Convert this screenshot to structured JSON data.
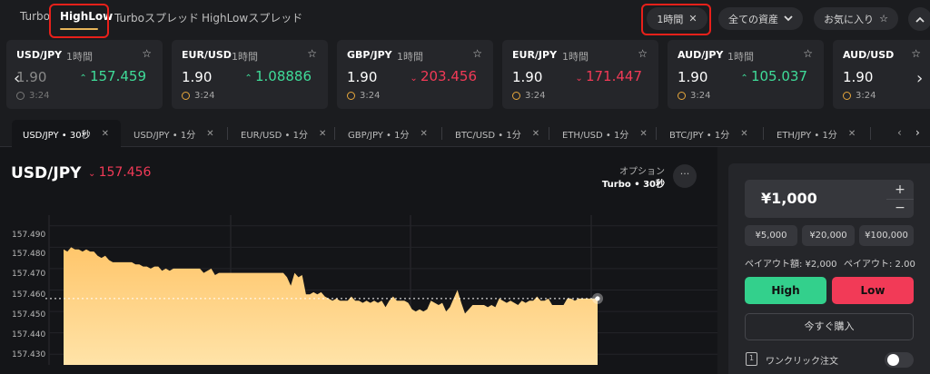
{
  "top_tabs": [
    {
      "label": "Turbo"
    },
    {
      "label": "HighLow"
    },
    {
      "label": "Turboスプレッド"
    },
    {
      "label": "HighLowスプレッド"
    }
  ],
  "filters": {
    "period_label": "1時間",
    "assets_label": "全ての資産",
    "favorites_label": "お気に入り"
  },
  "cards": [
    {
      "pair": "USD/JPY",
      "period": "1時間",
      "payout": "1.90",
      "price": "157.459",
      "direction": "up",
      "timer": "3:24"
    },
    {
      "pair": "EUR/USD",
      "period": "1時間",
      "payout": "1.90",
      "price": "1.08886",
      "direction": "up",
      "timer": "3:24"
    },
    {
      "pair": "GBP/JPY",
      "period": "1時間",
      "payout": "1.90",
      "price": "203.456",
      "direction": "down",
      "timer": "3:24"
    },
    {
      "pair": "EUR/JPY",
      "period": "1時間",
      "payout": "1.90",
      "price": "171.447",
      "direction": "down",
      "timer": "3:24"
    },
    {
      "pair": "AUD/JPY",
      "period": "1時間",
      "payout": "1.90",
      "price": "105.037",
      "direction": "up",
      "timer": "3:24"
    },
    {
      "pair": "AUD/USD",
      "period": "",
      "payout": "1.90",
      "price": "",
      "direction": "up",
      "timer": "3:24"
    }
  ],
  "chart_tabs": [
    {
      "label": "USD/JPY • 30秒"
    },
    {
      "label": "USD/JPY • 1分"
    },
    {
      "label": "EUR/USD • 1分"
    },
    {
      "label": "GBP/JPY • 1分"
    },
    {
      "label": "BTC/USD • 1分"
    },
    {
      "label": "ETH/USD • 1分"
    },
    {
      "label": "BTC/JPY • 1分"
    },
    {
      "label": "ETH/JPY • 1分"
    }
  ],
  "chart_header": {
    "symbol": "USD/JPY",
    "price": "157.456",
    "option_label": "オプション",
    "option_value": "Turbo • 30秒"
  },
  "chart_data": {
    "type": "area",
    "y_ticks": [
      "157.490",
      "157.480",
      "157.470",
      "157.460",
      "157.450",
      "157.440",
      "157.430"
    ],
    "ylim": [
      157.425,
      157.495
    ],
    "current_value": 157.456,
    "grid": true,
    "values": [
      157.479,
      157.478,
      157.48,
      157.479,
      157.479,
      157.478,
      157.479,
      157.478,
      157.478,
      157.476,
      157.475,
      157.476,
      157.474,
      157.473,
      157.473,
      157.473,
      157.473,
      157.473,
      157.473,
      157.472,
      157.472,
      157.471,
      157.471,
      157.47,
      157.471,
      157.471,
      157.469,
      157.47,
      157.469,
      157.47,
      157.47,
      157.47,
      157.47,
      157.47,
      157.47,
      157.47,
      157.47,
      157.468,
      157.469,
      157.47,
      157.467,
      157.468,
      157.468,
      157.468,
      157.468,
      157.468,
      157.468,
      157.468,
      157.468,
      157.468,
      157.468,
      157.468,
      157.468,
      157.468,
      157.468,
      157.468,
      157.468,
      157.468,
      157.468,
      157.466,
      157.462,
      157.468,
      157.466,
      157.467,
      157.458,
      157.458,
      157.459,
      157.458,
      157.459,
      157.457,
      157.456,
      157.455,
      157.456,
      157.455,
      157.455,
      157.455,
      157.457,
      157.455,
      157.455,
      157.454,
      157.455,
      157.454,
      157.455,
      157.454,
      157.455,
      157.452,
      157.455,
      157.457,
      157.455,
      157.455,
      157.455,
      157.454,
      157.451,
      157.45,
      157.451,
      157.45,
      157.451,
      157.455,
      157.454,
      157.453,
      157.454,
      157.45,
      157.452,
      157.456,
      157.46,
      157.454,
      157.449,
      157.451,
      157.453,
      157.453,
      157.453,
      157.453,
      157.452,
      157.453,
      157.452,
      157.456,
      157.455,
      157.454,
      157.455,
      157.454,
      157.453,
      157.455,
      157.454,
      157.455,
      157.455,
      157.457,
      157.455,
      157.455,
      157.456,
      157.453,
      157.453,
      157.453,
      157.453,
      157.456,
      157.456,
      157.455,
      157.456,
      157.456,
      157.456,
      157.456,
      157.456,
      157.456
    ]
  },
  "panel": {
    "amount": "¥1,000",
    "plus": "+",
    "minus": "−",
    "quick_amounts": [
      "¥5,000",
      "¥20,000",
      "¥100,000"
    ],
    "payout_amount": "ペイアウト額: ¥2,000",
    "payout_rate": "ペイアウト: 2.00",
    "high_label": "High",
    "low_label": "Low",
    "buy_label": "今すぐ購入",
    "one_click_label": "ワンクリック注文"
  },
  "colors": {
    "accent": "#e7b45a",
    "up": "#3fdc99",
    "down": "#f23a57",
    "highlight_box": "#e8201a",
    "area_top": "#ffc66b",
    "area_bottom": "#ffe3a8"
  }
}
